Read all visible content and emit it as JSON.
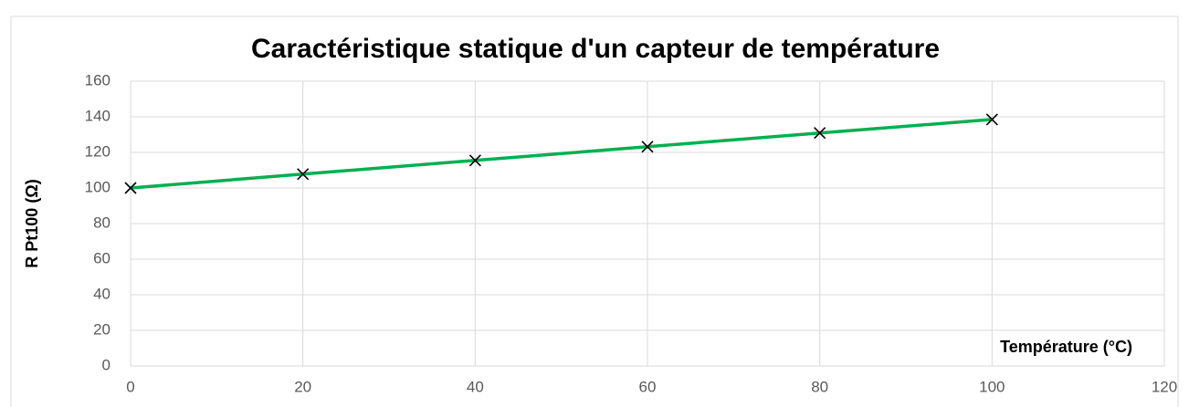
{
  "chart_data": {
    "type": "line",
    "title": "Caractéristique statique d'un capteur de température",
    "x_label": "Température (°C)",
    "y_label": "R Pt100 (Ω)",
    "x": [
      0,
      20,
      40,
      60,
      80,
      100
    ],
    "series": [
      {
        "name": "R Pt100 (Ω)",
        "color": "#00b050",
        "marker_color": "#000000",
        "values": [
          100,
          107.8,
          115.5,
          123.2,
          130.9,
          138.5
        ]
      }
    ],
    "xlim": [
      0,
      120
    ],
    "xticks": [
      0,
      20,
      40,
      60,
      80,
      100,
      120
    ],
    "ylim": [
      0,
      160
    ],
    "yticks": [
      0,
      20,
      40,
      60,
      80,
      100,
      120,
      140,
      160
    ],
    "grid": true
  }
}
